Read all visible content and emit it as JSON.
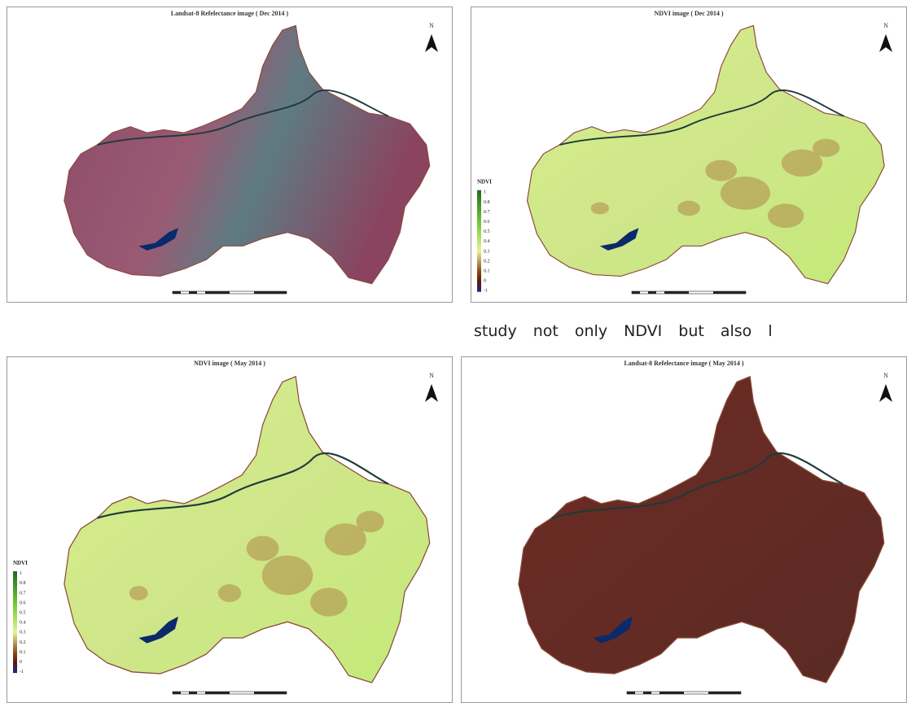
{
  "panels": [
    {
      "title": "Landsat-8 Refelectance image ( Dec 2014 )",
      "north": "N"
    },
    {
      "title": "NDVI image ( Dec 2014 )",
      "north": "N",
      "legend": {
        "title": "NDVI",
        "labels": [
          "1",
          "0.8",
          "0.7",
          "0.6",
          "0.5",
          "0.4",
          "0.3",
          "0.2",
          "0.1",
          "0",
          "-1"
        ]
      }
    },
    {
      "title": "NDVI image ( May 2014 )",
      "north": "N",
      "legend": {
        "title": "NDVI",
        "labels": [
          "1",
          "0.8",
          "0.7",
          "0.6",
          "0.5",
          "0.4",
          "0.3",
          "0.2",
          "0.1",
          "0",
          "-1"
        ]
      }
    },
    {
      "title": "Landsat-8 Refelectance image ( May 2014 )",
      "north": "N"
    }
  ],
  "caption": "study not only NDVI but also l"
}
